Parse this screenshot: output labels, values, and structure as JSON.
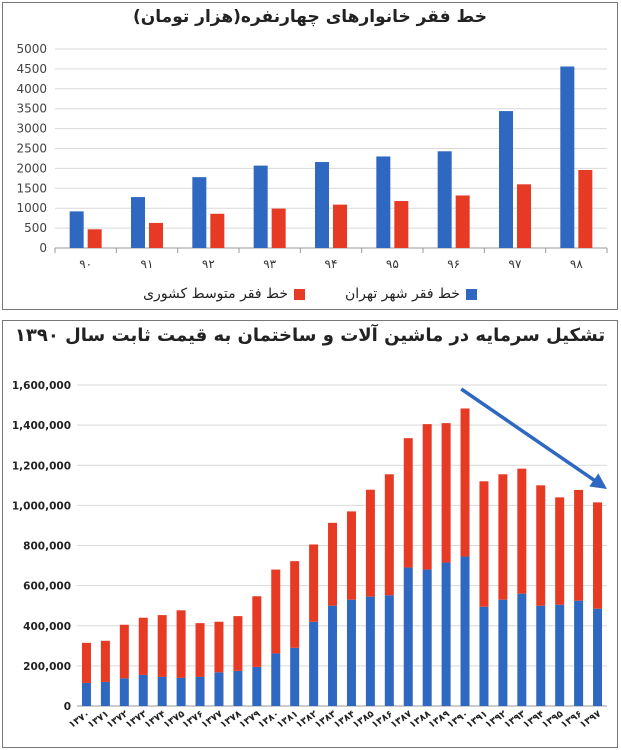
{
  "chart_data": [
    {
      "type": "bar",
      "title": "خط فقر خانوارهای چهارنفره(هزار تومان)",
      "categories": [
        "۹۰",
        "۹۱",
        "۹۲",
        "۹۳",
        "۹۴",
        "۹۵",
        "۹۶",
        "۹۷",
        "۹۸"
      ],
      "series": [
        {
          "name": "خط فقر شهر تهران",
          "color": "#2e68c0",
          "values": [
            920,
            1280,
            1780,
            2070,
            2160,
            2300,
            2430,
            3440,
            4560
          ]
        },
        {
          "name": "خط فقر متوسط کشوری",
          "color": "#e63a25",
          "values": [
            470,
            630,
            860,
            990,
            1090,
            1180,
            1320,
            1600,
            1960
          ]
        }
      ],
      "ylim": [
        0,
        5000
      ],
      "yticks": [
        "0",
        "500",
        "1000",
        "1500",
        "2000",
        "2500",
        "3000",
        "3500",
        "4000",
        "4500",
        "5000"
      ],
      "grid": true,
      "legend": "bottom"
    },
    {
      "type": "bar",
      "stacked": true,
      "title": "تشکیل سرمایه در ماشین آلات و ساختمان به قیمت ثابت سال ۱۳۹۰",
      "categories": [
        "۱۳۷۰",
        "۱۳۷۱",
        "۱۳۷۲",
        "۱۳۷۳",
        "۱۳۷۴",
        "۱۳۷۵",
        "۱۳۷۶",
        "۱۳۷۷",
        "۱۳۷۸",
        "۱۳۷۹",
        "۱۳۸۰",
        "۱۳۸۱",
        "۱۳۸۲",
        "۱۳۸۳",
        "۱۳۸۴",
        "۱۳۸۵",
        "۱۳۸۶",
        "۱۳۸۷",
        "۱۳۸۸",
        "۱۳۸۹",
        "۱۳۹۰",
        "۱۳۹۱",
        "۱۳۹۲",
        "۱۳۹۳",
        "۱۳۹۴",
        "۱۳۹۵",
        "۱۳۹۶",
        "۱۳۹۷"
      ],
      "series": [
        {
          "color": "#2e68c0",
          "values": [
            115000,
            120000,
            138000,
            155000,
            145000,
            140000,
            145000,
            168000,
            175000,
            195000,
            262000,
            290000,
            420000,
            500000,
            530000,
            545000,
            552000,
            690000,
            680000,
            715000,
            745000,
            495000,
            530000,
            560000,
            500000,
            505000,
            525000,
            485000
          ]
        },
        {
          "color": "#e63a25",
          "values": [
            200000,
            205000,
            267000,
            285000,
            308000,
            337000,
            268000,
            252000,
            273000,
            352000,
            418000,
            432000,
            385000,
            413000,
            440000,
            533000,
            603000,
            645000,
            725000,
            695000,
            738000,
            625000,
            625000,
            623000,
            600000,
            535000,
            552000,
            530000
          ]
        }
      ],
      "totals": [
        315000,
        325000,
        405000,
        440000,
        453000,
        477000,
        413000,
        420000,
        448000,
        547000,
        680000,
        722000,
        805000,
        913000,
        970000,
        1078000,
        1155000,
        1335000,
        1405000,
        1410000,
        1483000,
        1120000,
        1155000,
        1183000,
        1100000,
        1040000,
        1077000,
        1015000
      ],
      "ylim": [
        0,
        1600000
      ],
      "yticks": [
        "0",
        "200,000",
        "400,000",
        "600,000",
        "800,000",
        "1,000,000",
        "1,200,000",
        "1,400,000",
        "1,600,000"
      ],
      "grid": true,
      "annotation": "downward-trend-arrow"
    }
  ]
}
